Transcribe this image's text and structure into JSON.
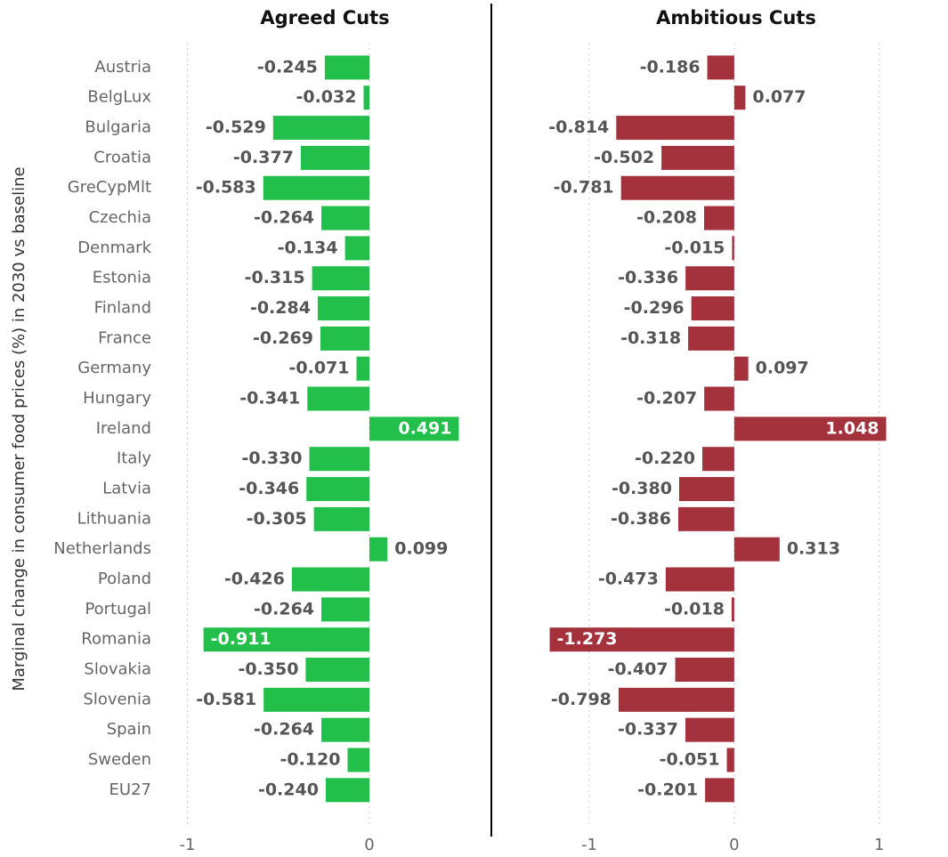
{
  "chart_data": [
    {
      "type": "bar",
      "title": "Agreed Cuts",
      "ylabel": "Marginal change in consumer food prices (%) in 2030 vs baseline",
      "categories": [
        "Austria",
        "BelgLux",
        "Bulgaria",
        "Croatia",
        "GreCypMlt",
        "Czechia",
        "Denmark",
        "Estonia",
        "Finland",
        "France",
        "Germany",
        "Hungary",
        "Ireland",
        "Italy",
        "Latvia",
        "Lithuania",
        "Netherlands",
        "Poland",
        "Portugal",
        "Romania",
        "Slovakia",
        "Slovenia",
        "Spain",
        "Sweden",
        "EU27"
      ],
      "values": [
        -0.245,
        -0.032,
        -0.529,
        -0.377,
        -0.583,
        -0.264,
        -0.134,
        -0.315,
        -0.284,
        -0.269,
        -0.071,
        -0.341,
        0.491,
        -0.33,
        -0.346,
        -0.305,
        0.099,
        -0.426,
        -0.264,
        -0.911,
        -0.35,
        -0.581,
        -0.264,
        -0.12,
        -0.24
      ],
      "value_labels": [
        "-0.245",
        "-0.032",
        "-0.529",
        "-0.377",
        "-0.583",
        "-0.264",
        "-0.134",
        "-0.315",
        "-0.284",
        "-0.269",
        "-0.071",
        "-0.341",
        "0.491",
        "-0.330",
        "-0.346",
        "-0.305",
        "0.099",
        "-0.426",
        "-0.264",
        "-0.911",
        "-0.350",
        "-0.581",
        "-0.264",
        "-0.120",
        "-0.240"
      ],
      "color": "#22c04b",
      "xlim": [
        -1.1,
        0.65
      ],
      "xticks": [
        -1,
        0
      ],
      "grid": true
    },
    {
      "type": "bar",
      "title": "Ambitious Cuts",
      "values": [
        -0.186,
        0.077,
        -0.814,
        -0.502,
        -0.781,
        -0.208,
        -0.015,
        -0.336,
        -0.296,
        -0.318,
        0.097,
        -0.207,
        1.048,
        -0.22,
        -0.38,
        -0.386,
        0.313,
        -0.473,
        -0.018,
        -1.273,
        -0.407,
        -0.798,
        -0.337,
        -0.051,
        -0.201
      ],
      "value_labels": [
        "-0.186",
        "0.077",
        "-0.814",
        "-0.502",
        "-0.781",
        "-0.208",
        "-0.015",
        "-0.336",
        "-0.296",
        "-0.318",
        "0.097",
        "-0.207",
        "1.048",
        "-0.220",
        "-0.380",
        "-0.386",
        "0.313",
        "-0.473",
        "-0.018",
        "-1.273",
        "-0.407",
        "-0.798",
        "-0.337",
        "-0.051",
        "-0.201"
      ],
      "color": "#a4323c",
      "xlim": [
        -1.35,
        1.45
      ],
      "xticks": [
        -1,
        0,
        1
      ],
      "grid": true
    }
  ]
}
